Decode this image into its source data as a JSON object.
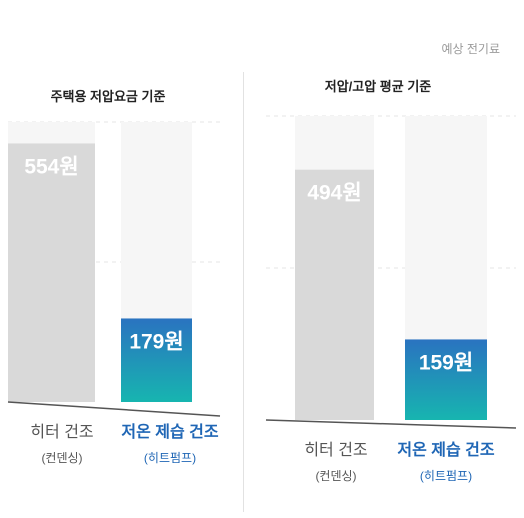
{
  "header_note": "예상 전기료",
  "chart_data": [
    {
      "type": "bar",
      "title": "주택용 저압요금 기준",
      "categories": [
        {
          "main": "히터 건조",
          "sub": "(컨덴싱)"
        },
        {
          "main": "저온 제습 건조",
          "sub": "(히트펌프)"
        }
      ],
      "values": [
        554,
        179
      ],
      "value_labels": [
        "554원",
        "179원"
      ],
      "ylim": [
        0,
        600
      ],
      "grid": true
    },
    {
      "type": "bar",
      "title": "저압/고압 평균 기준",
      "categories": [
        {
          "main": "히터 건조",
          "sub": "(컨덴싱)"
        },
        {
          "main": "저온 제습 건조",
          "sub": "(히트펌프)"
        }
      ],
      "values": [
        494,
        159
      ],
      "value_labels": [
        "494원",
        "159원"
      ],
      "ylim": [
        0,
        600
      ],
      "grid": true
    }
  ],
  "colors": {
    "heater_bar": "#d9d9d9",
    "heatpump_top": "#2a73c0",
    "heatpump_bottom": "#17b5b0",
    "track": "#f6f6f6",
    "heater_text": "#555555",
    "heatpump_text": "#1f66b5"
  }
}
